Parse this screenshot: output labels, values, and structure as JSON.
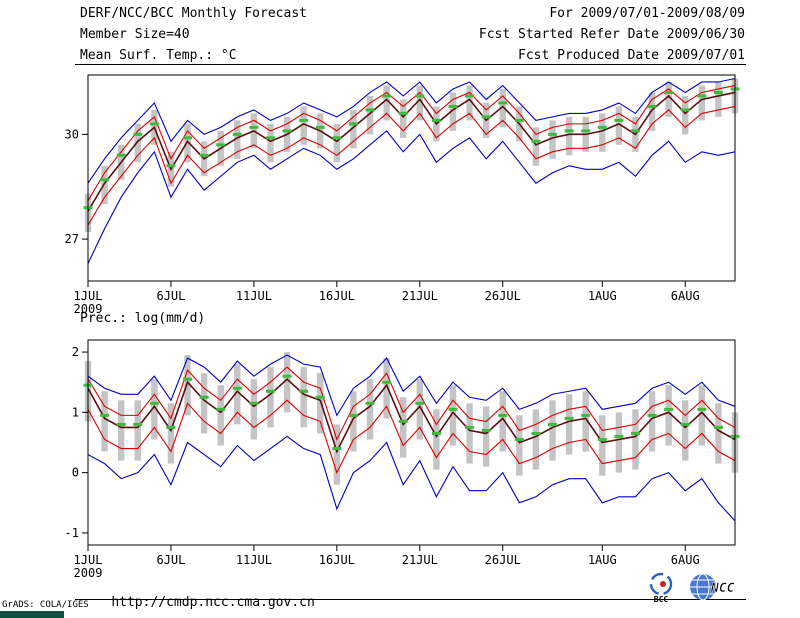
{
  "header": {
    "title": "DERF/NCC/BCC Monthly Forecast",
    "member_size": "Member Size=40",
    "for_period": "For 2009/07/01-2009/08/09",
    "refer_date": "Fcst Started Refer Date 2009/06/30",
    "produced_date": "Fcst Produced Date 2009/07/01"
  },
  "footer": {
    "url": "http://cmdp.ncc.cma.gov.cn",
    "grads_credit": "GrADS: COLA/IGES",
    "logo_bcc": "BCC",
    "logo_ncc": "NCC"
  },
  "colors": {
    "ensemble_minmax": "#0000cc",
    "quartile": "#e00000",
    "mean": "#5a0f0f",
    "median_marker": "#3dbb3d",
    "spread_bar": "#c4c4c4",
    "axis": "#000000"
  },
  "chart_data": [
    {
      "type": "line",
      "title": "Mean Surf. Temp.: °C",
      "xlabel": "",
      "ylabel": "",
      "n_days": 40,
      "x_tick_days": [
        1,
        6,
        11,
        16,
        21,
        26,
        32,
        37
      ],
      "x_tick_labels": [
        "1JUL",
        "6JUL",
        "11JUL",
        "16JUL",
        "21JUL",
        "26JUL",
        "1AUG",
        "6AUG"
      ],
      "x_axis_year": "2009",
      "ylim": [
        25.8,
        31.7
      ],
      "yticks": [
        27,
        30
      ],
      "grid": false,
      "legend": "none",
      "bars": {
        "name": "ensemble-spread",
        "color": "#c4c4c4",
        "low": [
          27.2,
          28.0,
          28.7,
          29.2,
          29.7,
          28.5,
          29.2,
          28.8,
          29.1,
          29.3,
          29.6,
          29.2,
          29.5,
          29.7,
          29.6,
          29.2,
          29.6,
          30.0,
          30.4,
          29.9,
          30.4,
          29.8,
          30.1,
          30.4,
          29.9,
          30.2,
          29.8,
          29.1,
          29.3,
          29.4,
          29.5,
          29.5,
          29.7,
          29.5,
          30.1,
          30.5,
          30.0,
          30.4,
          30.5,
          30.6
        ],
        "high": [
          28.3,
          29.1,
          29.7,
          30.3,
          30.7,
          29.5,
          30.3,
          29.8,
          30.1,
          30.4,
          30.6,
          30.3,
          30.5,
          30.8,
          30.6,
          30.3,
          30.7,
          31.1,
          31.4,
          31.0,
          31.4,
          30.8,
          31.2,
          31.4,
          30.9,
          31.3,
          30.8,
          30.2,
          30.4,
          30.5,
          30.5,
          30.6,
          30.8,
          30.5,
          31.2,
          31.5,
          31.1,
          31.4,
          31.5,
          31.6
        ]
      },
      "series": [
        {
          "name": "ensemble-max",
          "color": "#0000cc",
          "style": "line",
          "width": 1.1,
          "values": [
            28.6,
            29.3,
            29.9,
            30.4,
            30.9,
            29.8,
            30.4,
            30.0,
            30.2,
            30.5,
            30.7,
            30.4,
            30.6,
            30.9,
            30.7,
            30.5,
            30.8,
            31.2,
            31.5,
            31.1,
            31.5,
            30.9,
            31.3,
            31.5,
            31.0,
            31.4,
            30.9,
            30.4,
            30.5,
            30.6,
            30.6,
            30.7,
            30.9,
            30.6,
            31.2,
            31.5,
            31.2,
            31.5,
            31.5,
            31.6
          ]
        },
        {
          "name": "upper-quartile",
          "color": "#e00000",
          "style": "line",
          "width": 1.1,
          "values": [
            28.1,
            28.9,
            29.5,
            30.1,
            30.5,
            29.3,
            30.1,
            29.6,
            29.9,
            30.2,
            30.4,
            30.1,
            30.3,
            30.6,
            30.4,
            30.1,
            30.5,
            30.9,
            31.2,
            30.8,
            31.2,
            30.6,
            31.0,
            31.2,
            30.7,
            31.1,
            30.6,
            30.0,
            30.2,
            30.3,
            30.3,
            30.4,
            30.6,
            30.3,
            31.0,
            31.3,
            30.9,
            31.2,
            31.3,
            31.4
          ]
        },
        {
          "name": "ensemble-mean",
          "color": "#5a0f0f",
          "style": "line",
          "width": 1.6,
          "values": [
            27.8,
            28.6,
            29.2,
            29.8,
            30.2,
            29.0,
            29.8,
            29.3,
            29.6,
            29.9,
            30.1,
            29.8,
            30.0,
            30.3,
            30.1,
            29.8,
            30.2,
            30.6,
            31.0,
            30.5,
            31.0,
            30.3,
            30.7,
            31.0,
            30.4,
            30.8,
            30.3,
            29.7,
            29.9,
            30.0,
            30.0,
            30.1,
            30.3,
            30.0,
            30.7,
            31.1,
            30.6,
            31.0,
            31.1,
            31.2
          ]
        },
        {
          "name": "lower-quartile",
          "color": "#e00000",
          "style": "line",
          "width": 1.1,
          "values": [
            27.4,
            28.2,
            28.8,
            29.4,
            29.9,
            28.6,
            29.4,
            28.9,
            29.2,
            29.5,
            29.7,
            29.4,
            29.6,
            29.9,
            29.7,
            29.4,
            29.8,
            30.2,
            30.6,
            30.1,
            30.6,
            29.9,
            30.3,
            30.6,
            30.0,
            30.4,
            29.9,
            29.3,
            29.5,
            29.6,
            29.6,
            29.7,
            29.9,
            29.6,
            30.3,
            30.7,
            30.2,
            30.6,
            30.7,
            30.8
          ]
        },
        {
          "name": "ensemble-min",
          "color": "#0000cc",
          "style": "line",
          "width": 1.1,
          "values": [
            26.3,
            27.3,
            28.2,
            28.9,
            29.5,
            28.2,
            29.0,
            28.4,
            28.8,
            29.2,
            29.4,
            29.0,
            29.3,
            29.6,
            29.4,
            29.0,
            29.3,
            29.7,
            30.1,
            29.5,
            30.0,
            29.2,
            29.6,
            29.9,
            29.3,
            29.8,
            29.2,
            28.6,
            28.9,
            29.1,
            29.0,
            29.0,
            29.2,
            28.8,
            29.4,
            29.8,
            29.2,
            29.5,
            29.4,
            29.5
          ]
        },
        {
          "name": "median",
          "color": "#3dbb3d",
          "style": "dash",
          "width": 3,
          "values": [
            27.9,
            28.7,
            29.4,
            30.0,
            30.3,
            29.1,
            29.9,
            29.4,
            29.7,
            30.0,
            30.2,
            29.9,
            30.1,
            30.4,
            30.2,
            29.9,
            30.3,
            30.7,
            31.1,
            30.6,
            31.1,
            30.4,
            30.8,
            31.1,
            30.5,
            30.9,
            30.4,
            29.8,
            30.0,
            30.1,
            30.1,
            30.2,
            30.4,
            30.1,
            30.8,
            31.2,
            30.7,
            31.1,
            31.2,
            31.3
          ]
        }
      ]
    },
    {
      "type": "line",
      "title": "Prec.: log(mm/d)",
      "xlabel": "",
      "ylabel": "",
      "n_days": 40,
      "x_tick_days": [
        1,
        6,
        11,
        16,
        21,
        26,
        32,
        37
      ],
      "x_tick_labels": [
        "1JUL",
        "6JUL",
        "11JUL",
        "16JUL",
        "21JUL",
        "26JUL",
        "1AUG",
        "6AUG"
      ],
      "x_axis_year": "2009",
      "ylim": [
        -1.2,
        2.2
      ],
      "yticks": [
        -1,
        0,
        1,
        2
      ],
      "grid": false,
      "legend": "none",
      "bars": {
        "name": "ensemble-spread",
        "color": "#c4c4c4",
        "low": [
          0.85,
          0.35,
          0.2,
          0.2,
          0.55,
          0.15,
          0.95,
          0.65,
          0.45,
          0.8,
          0.55,
          0.75,
          1.0,
          0.75,
          0.65,
          -0.2,
          0.35,
          0.55,
          0.9,
          0.25,
          0.55,
          0.05,
          0.45,
          0.15,
          0.1,
          0.35,
          -0.05,
          0.05,
          0.2,
          0.3,
          0.35,
          -0.05,
          0.0,
          0.05,
          0.35,
          0.45,
          0.2,
          0.45,
          0.15,
          0.0
        ],
        "high": [
          1.85,
          1.35,
          1.2,
          1.2,
          1.55,
          1.15,
          1.95,
          1.65,
          1.45,
          1.8,
          1.55,
          1.75,
          2.0,
          1.75,
          1.65,
          0.8,
          1.35,
          1.55,
          1.9,
          1.25,
          1.55,
          1.05,
          1.45,
          1.15,
          1.1,
          1.35,
          0.95,
          1.05,
          1.2,
          1.3,
          1.35,
          0.95,
          1.0,
          1.05,
          1.35,
          1.45,
          1.2,
          1.45,
          1.15,
          1.0
        ]
      },
      "series": [
        {
          "name": "ensemble-max",
          "color": "#0000cc",
          "style": "line",
          "width": 1.1,
          "values": [
            1.6,
            1.4,
            1.3,
            1.3,
            1.6,
            1.2,
            1.9,
            1.75,
            1.5,
            1.85,
            1.6,
            1.8,
            1.95,
            1.8,
            1.75,
            0.95,
            1.4,
            1.6,
            1.9,
            1.35,
            1.6,
            1.15,
            1.5,
            1.25,
            1.2,
            1.4,
            1.05,
            1.15,
            1.3,
            1.35,
            1.4,
            1.05,
            1.1,
            1.15,
            1.4,
            1.5,
            1.3,
            1.5,
            1.2,
            1.1
          ]
        },
        {
          "name": "upper-quartile",
          "color": "#e00000",
          "style": "line",
          "width": 1.1,
          "values": [
            1.55,
            1.1,
            0.95,
            0.95,
            1.3,
            0.9,
            1.7,
            1.4,
            1.2,
            1.55,
            1.3,
            1.5,
            1.75,
            1.5,
            1.4,
            0.55,
            1.1,
            1.3,
            1.65,
            1.0,
            1.3,
            0.8,
            1.2,
            0.9,
            0.85,
            1.1,
            0.7,
            0.8,
            0.95,
            1.05,
            1.1,
            0.7,
            0.75,
            0.8,
            1.1,
            1.2,
            0.95,
            1.2,
            0.9,
            0.75
          ]
        },
        {
          "name": "ensemble-mean",
          "color": "#5a0f0f",
          "style": "line",
          "width": 1.6,
          "values": [
            1.4,
            0.9,
            0.75,
            0.75,
            1.1,
            0.7,
            1.5,
            1.2,
            1.0,
            1.35,
            1.1,
            1.3,
            1.55,
            1.3,
            1.2,
            0.35,
            0.9,
            1.1,
            1.45,
            0.8,
            1.1,
            0.6,
            1.0,
            0.7,
            0.65,
            0.9,
            0.5,
            0.6,
            0.75,
            0.85,
            0.9,
            0.5,
            0.55,
            0.6,
            0.9,
            1.0,
            0.75,
            1.0,
            0.7,
            0.55
          ]
        },
        {
          "name": "lower-quartile",
          "color": "#e00000",
          "style": "line",
          "width": 1.1,
          "values": [
            1.05,
            0.55,
            0.4,
            0.4,
            0.75,
            0.35,
            1.15,
            0.85,
            0.65,
            1.0,
            0.75,
            0.95,
            1.2,
            0.95,
            0.85,
            0.0,
            0.55,
            0.75,
            1.1,
            0.45,
            0.75,
            0.25,
            0.65,
            0.35,
            0.3,
            0.55,
            0.15,
            0.25,
            0.4,
            0.5,
            0.55,
            0.15,
            0.2,
            0.25,
            0.55,
            0.65,
            0.4,
            0.65,
            0.35,
            0.2
          ]
        },
        {
          "name": "ensemble-min",
          "color": "#0000cc",
          "style": "line",
          "width": 1.1,
          "values": [
            0.3,
            0.15,
            -0.1,
            0.0,
            0.3,
            -0.2,
            0.5,
            0.3,
            0.1,
            0.45,
            0.2,
            0.4,
            0.6,
            0.4,
            0.3,
            -0.6,
            0.0,
            0.2,
            0.5,
            -0.2,
            0.2,
            -0.4,
            0.1,
            -0.3,
            -0.3,
            0.0,
            -0.5,
            -0.4,
            -0.2,
            -0.1,
            -0.1,
            -0.5,
            -0.4,
            -0.4,
            -0.1,
            0.0,
            -0.3,
            -0.1,
            -0.5,
            -0.8
          ]
        },
        {
          "name": "median",
          "color": "#3dbb3d",
          "style": "dash",
          "width": 3,
          "values": [
            1.45,
            0.95,
            0.8,
            0.8,
            1.15,
            0.75,
            1.55,
            1.25,
            1.05,
            1.4,
            1.15,
            1.35,
            1.6,
            1.35,
            1.25,
            0.4,
            0.95,
            1.15,
            1.5,
            0.85,
            1.15,
            0.65,
            1.05,
            0.75,
            0.7,
            0.95,
            0.55,
            0.65,
            0.8,
            0.9,
            0.95,
            0.55,
            0.6,
            0.65,
            0.95,
            1.05,
            0.8,
            1.05,
            0.75,
            0.6
          ]
        }
      ]
    }
  ]
}
